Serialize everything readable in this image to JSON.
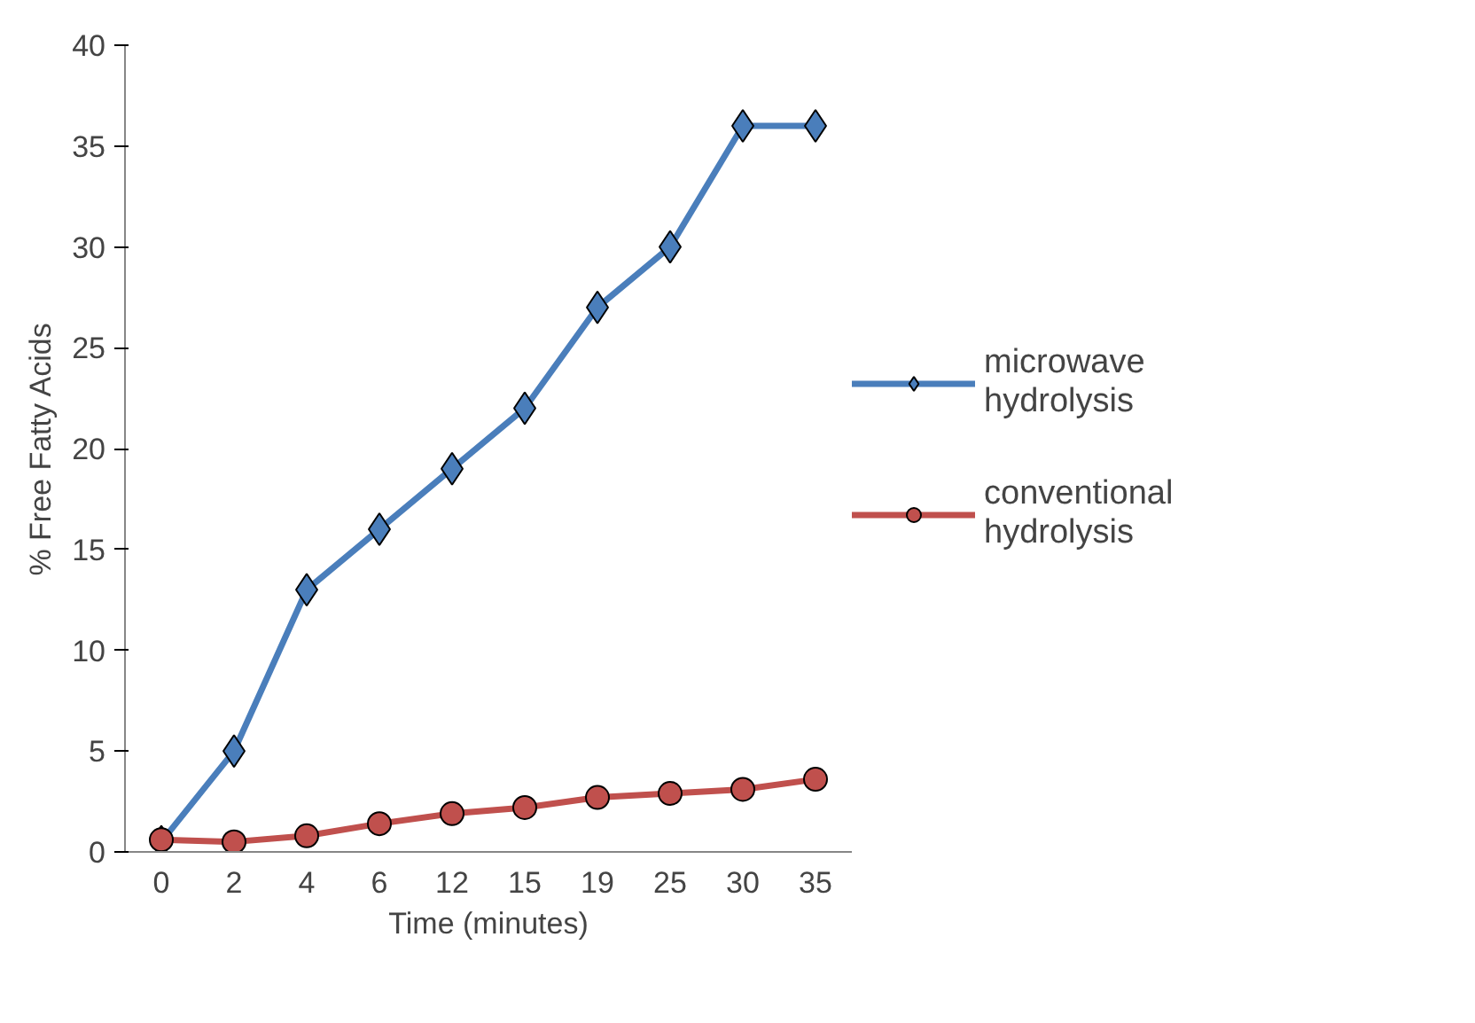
{
  "chart_data": {
    "type": "line",
    "xlabel": "Time (minutes)",
    "ylabel": "% Free Fatty Acids",
    "categories": [
      "0",
      "2",
      "4",
      "6",
      "12",
      "15",
      "19",
      "25",
      "30",
      "35"
    ],
    "series": [
      {
        "name": "microwave hydrolysis",
        "color": "#4a7ebb",
        "marker": "diamond",
        "values": [
          0.5,
          5,
          13,
          16,
          19,
          22,
          27,
          30,
          36,
          36
        ]
      },
      {
        "name": "conventional hydrolysis",
        "color": "#c0504d",
        "marker": "circle",
        "values": [
          0.6,
          0.5,
          0.8,
          1.4,
          1.9,
          2.2,
          2.7,
          2.9,
          3.1,
          3.6
        ]
      }
    ],
    "ylim": [
      0,
      40
    ],
    "yticks": [
      0,
      5,
      10,
      15,
      20,
      25,
      30,
      35,
      40
    ],
    "grid": false,
    "legend": "right"
  }
}
